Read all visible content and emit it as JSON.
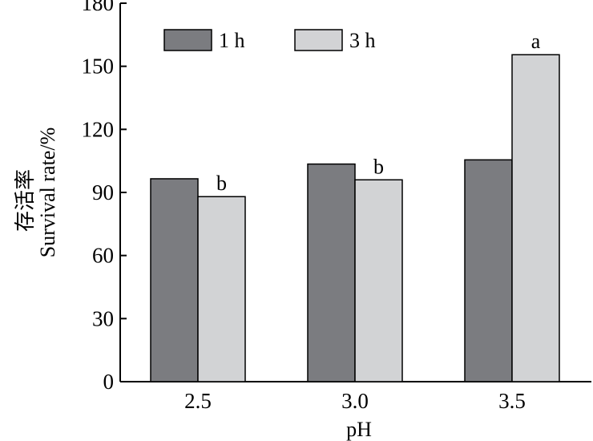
{
  "chart_data": {
    "type": "bar",
    "categories": [
      "2.5",
      "3.0",
      "3.5"
    ],
    "series": [
      {
        "name": "1 h",
        "color": "#7b7c80",
        "values": [
          96.5,
          103.5,
          105.5
        ]
      },
      {
        "name": "3 h",
        "color": "#d2d3d5",
        "values": [
          88,
          96,
          155.5
        ]
      }
    ],
    "significance": [
      {
        "category": "2.5",
        "series": "3 h",
        "label": "b"
      },
      {
        "category": "3.0",
        "series": "3 h",
        "label": "b"
      },
      {
        "category": "3.5",
        "series": "3 h",
        "label": "a"
      }
    ],
    "yticks": [
      0,
      30,
      60,
      90,
      120,
      150,
      180
    ],
    "ylim": [
      0,
      180
    ],
    "xlabel": "pH",
    "ylabel": "Survival rate/%",
    "ylabel_cn": "存活率",
    "grid": false,
    "legend_position": "top-left"
  }
}
